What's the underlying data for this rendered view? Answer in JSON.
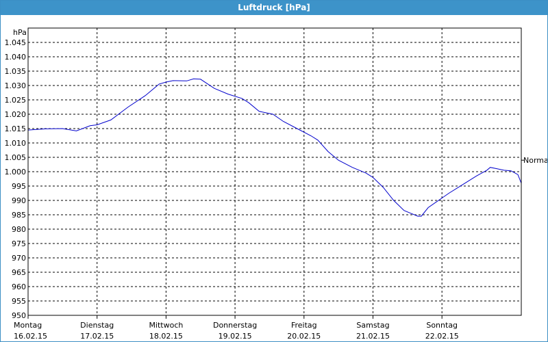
{
  "window": {
    "title": "Luftdruck [hPa]",
    "title_color": "#3d93c9"
  },
  "chart_data": {
    "type": "line",
    "ylabel": "hPa",
    "ylim": [
      950,
      1050
    ],
    "yticks": [
      950,
      955,
      960,
      965,
      970,
      975,
      980,
      985,
      990,
      995,
      1000,
      1005,
      1010,
      1015,
      1020,
      1025,
      1030,
      1035,
      1040,
      1045
    ],
    "ytick_labels": [
      "950",
      "955",
      "960",
      "965",
      "970",
      "975",
      "980",
      "985",
      "990",
      "995",
      "1.000",
      "1.005",
      "1.010",
      "1.015",
      "1.020",
      "1.025",
      "1.030",
      "1.035",
      "1.040",
      "1.045"
    ],
    "xlim": [
      0,
      7.15
    ],
    "xticks": [
      {
        "day": "Montag",
        "date": "16.02.15"
      },
      {
        "day": "Dienstag",
        "date": "17.02.15"
      },
      {
        "day": "Mittwoch",
        "date": "18.02.15"
      },
      {
        "day": "Donnerstag",
        "date": "19.02.15"
      },
      {
        "day": "Freitag",
        "date": "20.02.15"
      },
      {
        "day": "Samstag",
        "date": "21.02.15"
      },
      {
        "day": "Sonntag",
        "date": "22.02.15"
      }
    ],
    "reference_line": {
      "label": "Normal",
      "value": 1004
    },
    "grid": true,
    "line_color": "#0000cc",
    "series": [
      {
        "points": [
          [
            0.0,
            1014.5
          ],
          [
            0.25,
            1014.9
          ],
          [
            0.5,
            1015.0
          ],
          [
            0.7,
            1014.2
          ],
          [
            0.9,
            1016.0
          ],
          [
            1.0,
            1016.3
          ],
          [
            1.2,
            1018.0
          ],
          [
            1.45,
            1022.5
          ],
          [
            1.7,
            1026.5
          ],
          [
            1.9,
            1030.5
          ],
          [
            2.0,
            1031.2
          ],
          [
            2.1,
            1031.7
          ],
          [
            2.3,
            1031.6
          ],
          [
            2.4,
            1032.3
          ],
          [
            2.5,
            1032.2
          ],
          [
            2.7,
            1029.0
          ],
          [
            2.9,
            1027.0
          ],
          [
            3.1,
            1025.5
          ],
          [
            3.2,
            1024.0
          ],
          [
            3.35,
            1021.0
          ],
          [
            3.55,
            1020.0
          ],
          [
            3.7,
            1017.5
          ],
          [
            3.9,
            1015.0
          ],
          [
            4.1,
            1012.5
          ],
          [
            4.2,
            1011.0
          ],
          [
            4.35,
            1007.0
          ],
          [
            4.5,
            1004.0
          ],
          [
            4.7,
            1001.5
          ],
          [
            4.8,
            1000.5
          ],
          [
            4.9,
            999.5
          ],
          [
            5.0,
            998.0
          ],
          [
            5.15,
            994.5
          ],
          [
            5.3,
            990.0
          ],
          [
            5.45,
            986.5
          ],
          [
            5.55,
            985.5
          ],
          [
            5.65,
            984.5
          ],
          [
            5.7,
            984.5
          ],
          [
            5.8,
            987.5
          ],
          [
            5.95,
            990.0
          ],
          [
            6.1,
            992.5
          ],
          [
            6.3,
            995.5
          ],
          [
            6.5,
            998.5
          ],
          [
            6.65,
            1000.5
          ],
          [
            6.7,
            1001.5
          ],
          [
            6.8,
            1001.0
          ],
          [
            6.9,
            1000.5
          ],
          [
            7.0,
            1000.3
          ],
          [
            7.1,
            999.0
          ],
          [
            7.15,
            996.0
          ]
        ]
      }
    ]
  }
}
